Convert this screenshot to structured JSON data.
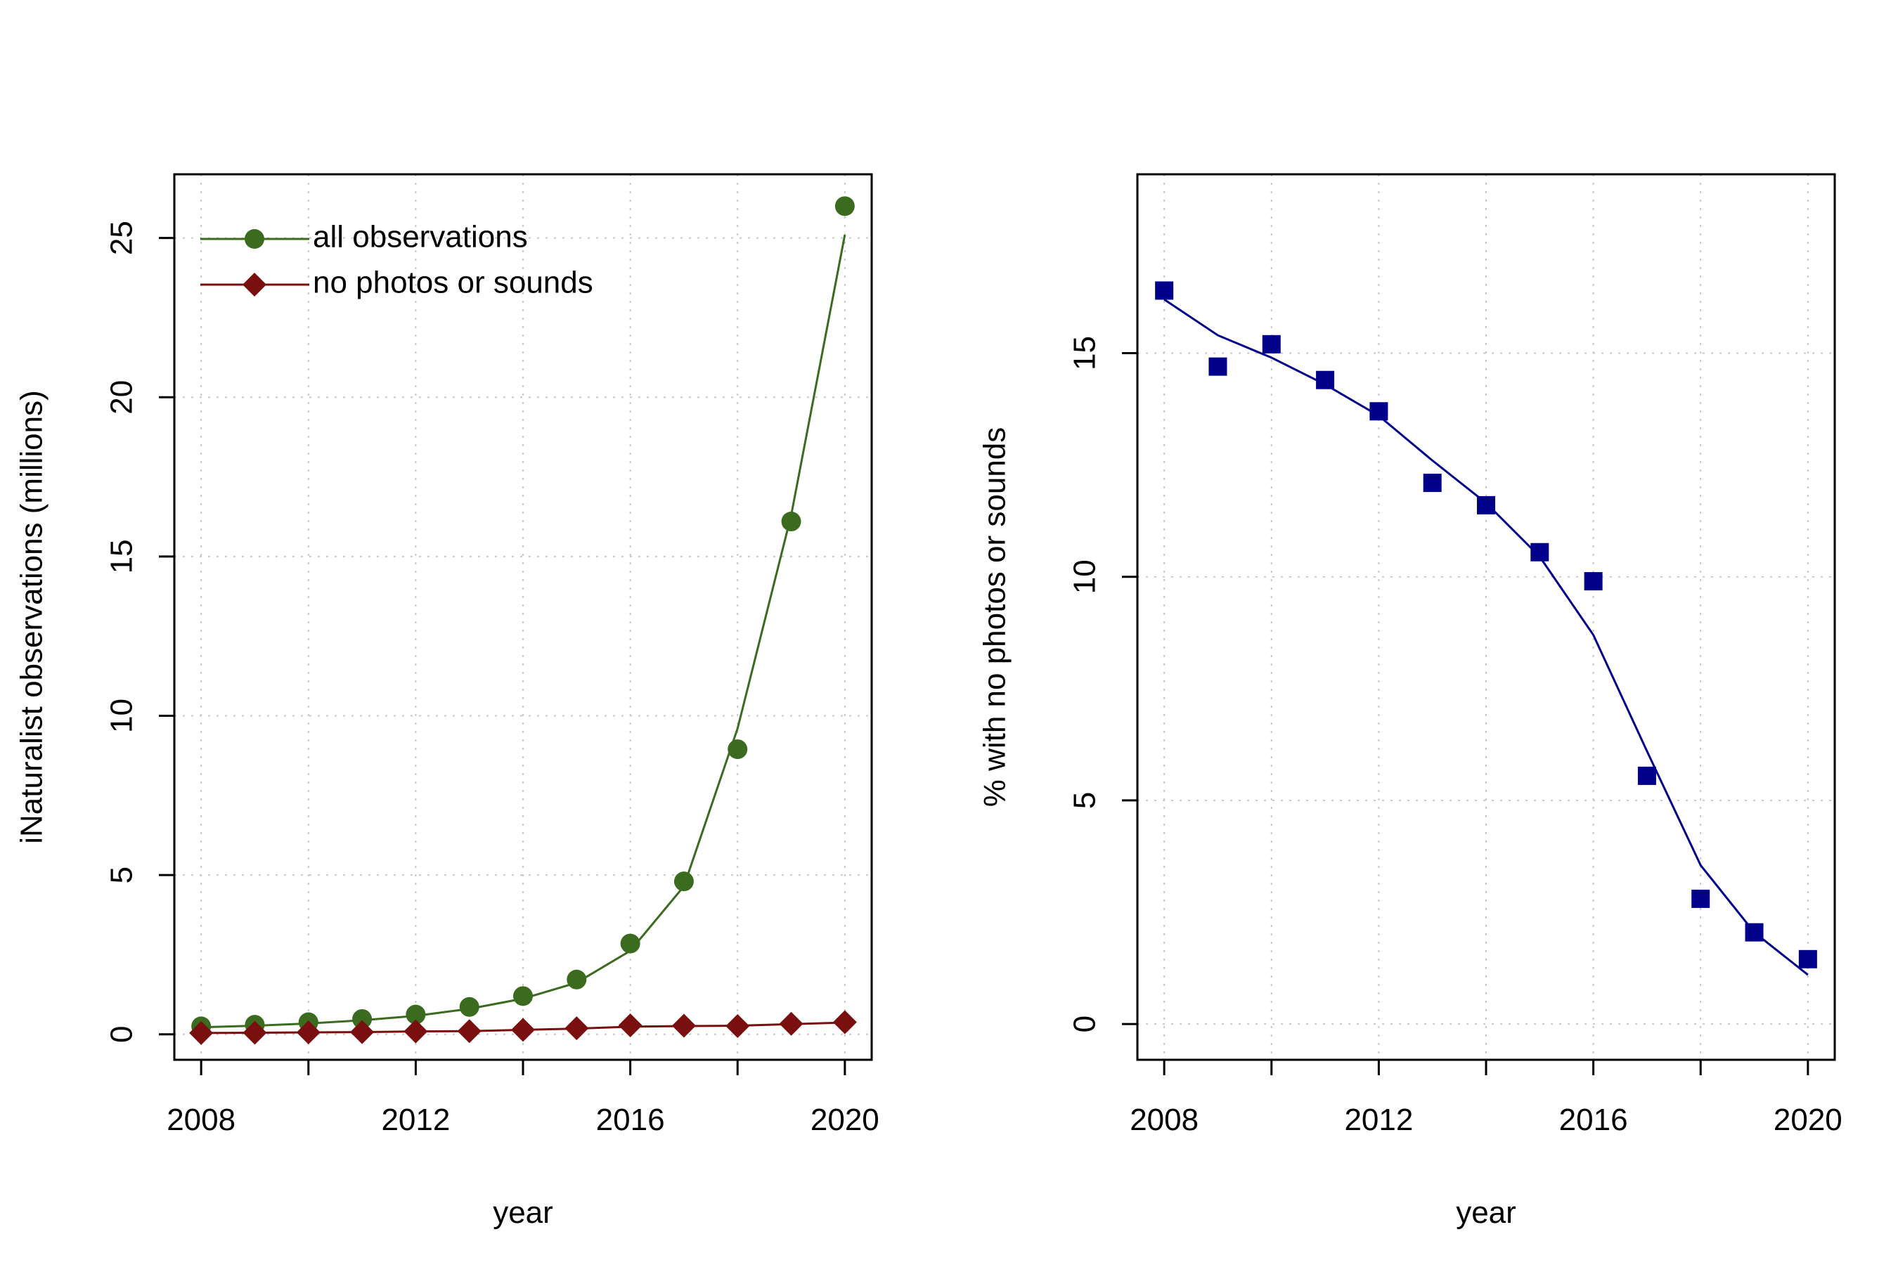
{
  "chart_data": [
    {
      "type": "line",
      "title": "",
      "xlabel": "year",
      "ylabel": "iNaturalist observations (millions)",
      "xlim": [
        2007.5,
        2020.5
      ],
      "ylim": [
        -0.8,
        27
      ],
      "x_ticks": [
        "2008",
        "2012",
        "2016",
        "2020"
      ],
      "x_minor_ticks": [
        2008,
        2010,
        2012,
        2014,
        2016,
        2018,
        2020
      ],
      "y_ticks": [
        "0",
        "5",
        "10",
        "15",
        "20",
        "25"
      ],
      "grid": true,
      "legend_position": "top-left",
      "series": [
        {
          "name": "all observations",
          "color": "#3a6b1f",
          "marker": "circle",
          "x": [
            2008,
            2009,
            2010,
            2011,
            2012,
            2013,
            2014,
            2015,
            2016,
            2017,
            2018,
            2019,
            2020
          ],
          "points": [
            0.25,
            0.3,
            0.38,
            0.48,
            0.62,
            0.86,
            1.2,
            1.72,
            2.85,
            4.8,
            8.95,
            16.1,
            26.0
          ],
          "fit": [
            0.22,
            0.27,
            0.34,
            0.44,
            0.58,
            0.8,
            1.12,
            1.62,
            2.62,
            4.65,
            9.6,
            16.3,
            25.1
          ]
        },
        {
          "name": "no photos or sounds",
          "color": "#7a0f0f",
          "marker": "diamond",
          "x": [
            2008,
            2009,
            2010,
            2011,
            2012,
            2013,
            2014,
            2015,
            2016,
            2017,
            2018,
            2019,
            2020
          ],
          "points": [
            0.04,
            0.05,
            0.06,
            0.07,
            0.09,
            0.1,
            0.14,
            0.19,
            0.28,
            0.27,
            0.26,
            0.33,
            0.38
          ],
          "fit": [
            0.04,
            0.05,
            0.06,
            0.07,
            0.09,
            0.1,
            0.14,
            0.18,
            0.24,
            0.26,
            0.27,
            0.32,
            0.37
          ]
        }
      ]
    },
    {
      "type": "line",
      "title": "",
      "xlabel": "year",
      "ylabel": "% with no photos or sounds",
      "xlim": [
        2007.5,
        2020.5
      ],
      "ylim": [
        -0.8,
        19
      ],
      "x_ticks": [
        "2008",
        "2012",
        "2016",
        "2020"
      ],
      "x_minor_ticks": [
        2008,
        2010,
        2012,
        2014,
        2016,
        2018,
        2020
      ],
      "y_ticks": [
        "0",
        "5",
        "10",
        "15"
      ],
      "grid": true,
      "series": [
        {
          "color": "#00008b",
          "marker": "square",
          "x": [
            2008,
            2009,
            2010,
            2011,
            2012,
            2013,
            2014,
            2015,
            2016,
            2017,
            2018,
            2019,
            2020
          ],
          "points": [
            16.4,
            14.7,
            15.2,
            14.4,
            13.7,
            12.1,
            11.6,
            10.55,
            9.9,
            5.55,
            2.8,
            2.05,
            1.45
          ],
          "fit": [
            16.2,
            15.4,
            14.9,
            14.3,
            13.6,
            12.6,
            11.65,
            10.45,
            8.7,
            6.1,
            3.55,
            2.05,
            1.1
          ]
        }
      ]
    }
  ]
}
